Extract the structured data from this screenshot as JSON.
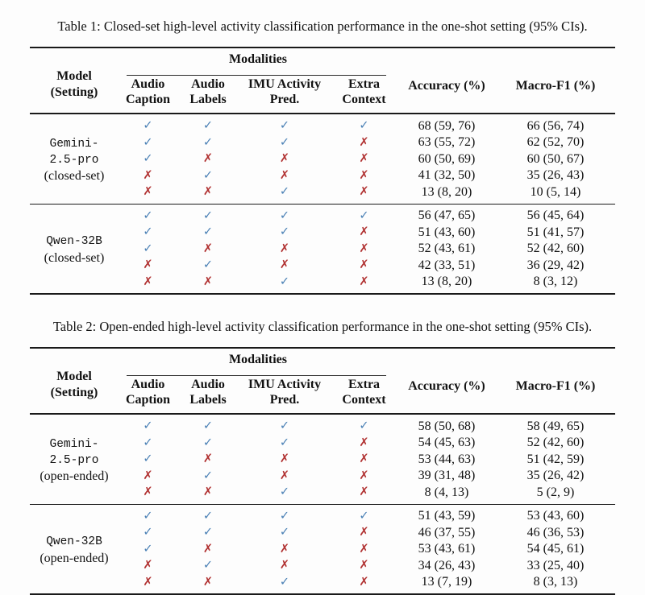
{
  "colors": {
    "check": "#4a80b5",
    "cross": "#b13232",
    "rule": "#1a1a1a"
  },
  "icons": {
    "check_glyph": "✓",
    "cross_glyph": "✗"
  },
  "header": {
    "model_lines": [
      "Model",
      "(Setting)"
    ],
    "modalities_label": "Modalities",
    "modality_columns": [
      [
        "Audio",
        "Caption"
      ],
      [
        "Audio",
        "Labels"
      ],
      [
        "IMU Activity",
        "Pred."
      ],
      [
        "Extra",
        "Context"
      ]
    ],
    "accuracy_label": "Accuracy (%)",
    "macro_f1_label": "Macro-F1 (%)"
  },
  "tables": [
    {
      "caption": "Table 1: Closed-set high-level activity classification performance in the one-shot setting (95% CIs).",
      "blocks": [
        {
          "model_lines": [
            "Gemini-",
            "2.5-pro"
          ],
          "setting": "(closed-set)",
          "rows": [
            {
              "modalities": [
                true,
                true,
                true,
                true
              ],
              "accuracy": "68 (59, 76)",
              "macro_f1": "66 (56, 74)"
            },
            {
              "modalities": [
                true,
                true,
                true,
                false
              ],
              "accuracy": "63 (55, 72)",
              "macro_f1": "62 (52, 70)"
            },
            {
              "modalities": [
                true,
                false,
                false,
                false
              ],
              "accuracy": "60 (50, 69)",
              "macro_f1": "60 (50, 67)"
            },
            {
              "modalities": [
                false,
                true,
                false,
                false
              ],
              "accuracy": "41 (32, 50)",
              "macro_f1": "35 (26, 43)"
            },
            {
              "modalities": [
                false,
                false,
                true,
                false
              ],
              "accuracy": "13 (8, 20)",
              "macro_f1": "10 (5, 14)"
            }
          ]
        },
        {
          "model_lines": [
            "Qwen-32B"
          ],
          "setting": "(closed-set)",
          "rows": [
            {
              "modalities": [
                true,
                true,
                true,
                true
              ],
              "accuracy": "56 (47, 65)",
              "macro_f1": "56 (45, 64)"
            },
            {
              "modalities": [
                true,
                true,
                true,
                false
              ],
              "accuracy": "51 (43, 60)",
              "macro_f1": "51 (41, 57)"
            },
            {
              "modalities": [
                true,
                false,
                false,
                false
              ],
              "accuracy": "52 (43, 61)",
              "macro_f1": "52 (42, 60)"
            },
            {
              "modalities": [
                false,
                true,
                false,
                false
              ],
              "accuracy": "42 (33, 51)",
              "macro_f1": "36 (29, 42)"
            },
            {
              "modalities": [
                false,
                false,
                true,
                false
              ],
              "accuracy": "13 (8, 20)",
              "macro_f1": "8 (3, 12)"
            }
          ]
        }
      ]
    },
    {
      "caption": "Table 2: Open-ended high-level activity classification performance in the one-shot setting (95% CIs).",
      "blocks": [
        {
          "model_lines": [
            "Gemini-",
            "2.5-pro"
          ],
          "setting": "(open-ended)",
          "rows": [
            {
              "modalities": [
                true,
                true,
                true,
                true
              ],
              "accuracy": "58 (50, 68)",
              "macro_f1": "58 (49, 65)"
            },
            {
              "modalities": [
                true,
                true,
                true,
                false
              ],
              "accuracy": "54 (45, 63)",
              "macro_f1": "52 (42, 60)"
            },
            {
              "modalities": [
                true,
                false,
                false,
                false
              ],
              "accuracy": "53 (44, 63)",
              "macro_f1": "51 (42, 59)"
            },
            {
              "modalities": [
                false,
                true,
                false,
                false
              ],
              "accuracy": "39 (31, 48)",
              "macro_f1": "35 (26, 42)"
            },
            {
              "modalities": [
                false,
                false,
                true,
                false
              ],
              "accuracy": "8 (4, 13)",
              "macro_f1": "5 (2, 9)"
            }
          ]
        },
        {
          "model_lines": [
            "Qwen-32B"
          ],
          "setting": "(open-ended)",
          "rows": [
            {
              "modalities": [
                true,
                true,
                true,
                true
              ],
              "accuracy": "51 (43, 59)",
              "macro_f1": "53 (43, 60)"
            },
            {
              "modalities": [
                true,
                true,
                true,
                false
              ],
              "accuracy": "46 (37, 55)",
              "macro_f1": "46 (36, 53)"
            },
            {
              "modalities": [
                true,
                false,
                false,
                false
              ],
              "accuracy": "53 (43, 61)",
              "macro_f1": "54 (45, 61)"
            },
            {
              "modalities": [
                false,
                true,
                false,
                false
              ],
              "accuracy": "34 (26, 43)",
              "macro_f1": "33 (25, 40)"
            },
            {
              "modalities": [
                false,
                false,
                true,
                false
              ],
              "accuracy": "13 (7, 19)",
              "macro_f1": "8 (3, 13)"
            }
          ]
        }
      ]
    }
  ]
}
